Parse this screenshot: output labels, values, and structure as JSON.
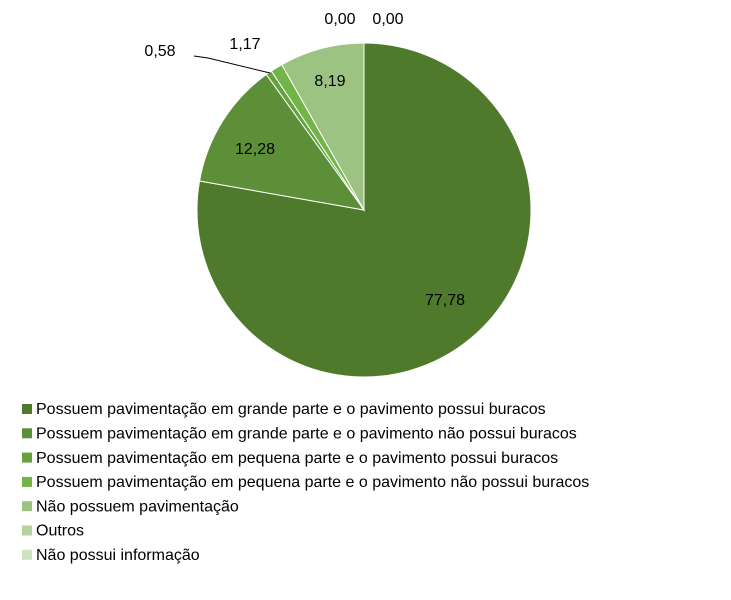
{
  "chart_data": {
    "type": "pie",
    "categories": [
      "Possuem pavimentação em grande parte e o pavimento possui buracos",
      "Possuem pavimentação em grande parte e o pavimento não possui buracos",
      "Possuem pavimentação em pequena parte e o pavimento possui buracos",
      "Possuem pavimentação em pequena parte e o pavimento não possui buracos",
      "Não possuem pavimentação",
      "Outros",
      "Não possui informação"
    ],
    "values": [
      77.78,
      12.28,
      0.58,
      1.17,
      8.19,
      0.0,
      0.0
    ],
    "value_labels": [
      "77,78",
      "12,28",
      "0,58",
      "1,17",
      "8,19",
      "0,00",
      "0,00"
    ],
    "colors": [
      "#4f7a2c",
      "#5c8f37",
      "#66a23d",
      "#72b447",
      "#9dc383",
      "#b4d29f",
      "#cfe2c2"
    ],
    "legend": "bottom"
  }
}
